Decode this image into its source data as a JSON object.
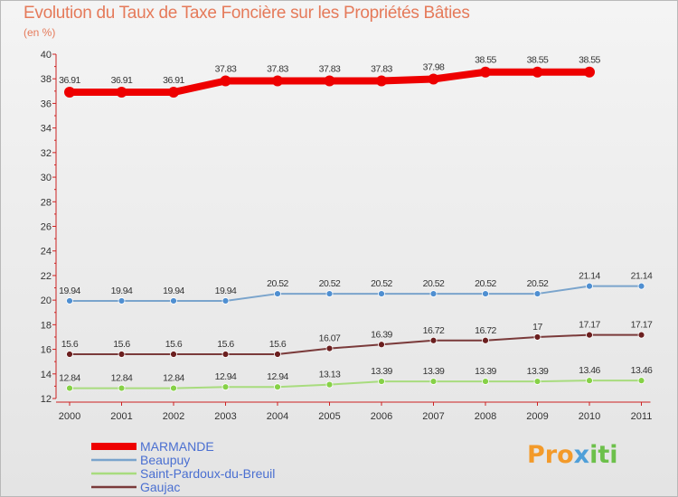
{
  "title": "Evolution du Taux de Taxe Foncière sur les Propriétés Bâties",
  "subtitle": "(en %)",
  "logo": {
    "text": "Proxiti",
    "parts": [
      "Pro",
      "x",
      "iti"
    ],
    "colors": [
      "#f39a2a",
      "#4f9fd8",
      "#6cc04a"
    ]
  },
  "chart_data": {
    "type": "line",
    "title": "Evolution du Taux de Taxe Foncière sur les Propriétés Bâties",
    "ylabel": "(en %)",
    "xlabel": "",
    "categories": [
      "2000",
      "2001",
      "2002",
      "2003",
      "2004",
      "2005",
      "2006",
      "2007",
      "2008",
      "2009",
      "2010",
      "2011"
    ],
    "ylim": [
      12,
      40
    ],
    "yticks": [
      12,
      14,
      16,
      18,
      20,
      22,
      24,
      26,
      28,
      30,
      32,
      34,
      36,
      38,
      40
    ],
    "grid": false,
    "legend_position": "bottom-left",
    "series": [
      {
        "name": "MARMANDE",
        "color": "#ee0000",
        "width": 8,
        "markerColor": "#ee0000",
        "markerRadius": 6,
        "values": [
          36.91,
          36.91,
          36.91,
          37.83,
          37.83,
          37.83,
          37.83,
          37.98,
          38.55,
          38.55,
          38.55,
          null
        ],
        "labels": [
          "36.91",
          "36.91",
          "36.91",
          "37.83",
          "37.83",
          "37.83",
          "37.83",
          "37.98",
          "38.55",
          "38.55",
          "38.55",
          ""
        ]
      },
      {
        "name": "Beaupuy",
        "color": "#7aa4cc",
        "width": 2,
        "markerColor": "#4f8fd1",
        "markerRadius": 3.5,
        "values": [
          19.94,
          19.94,
          19.94,
          19.94,
          20.52,
          20.52,
          20.52,
          20.52,
          20.52,
          20.52,
          21.14,
          21.14
        ],
        "labels": [
          "19.94",
          "19.94",
          "19.94",
          "19.94",
          "20.52",
          "20.52",
          "20.52",
          "20.52",
          "20.52",
          "20.52",
          "21.14",
          "21.14"
        ]
      },
      {
        "name": "Saint-Pardoux-du-Breuil",
        "color": "#a8dc7e",
        "width": 2,
        "markerColor": "#86d147",
        "markerRadius": 3.5,
        "values": [
          12.84,
          12.84,
          12.84,
          12.94,
          12.94,
          13.13,
          13.39,
          13.39,
          13.39,
          13.39,
          13.46,
          13.46
        ],
        "labels": [
          "12.84",
          "12.84",
          "12.84",
          "12.94",
          "12.94",
          "13.13",
          "13.39",
          "13.39",
          "13.39",
          "13.39",
          "13.46",
          "13.46"
        ]
      },
      {
        "name": "Gaujac",
        "color": "#7a3a3a",
        "width": 2,
        "markerColor": "#6b1f1f",
        "markerRadius": 3.5,
        "values": [
          15.6,
          15.6,
          15.6,
          15.6,
          15.6,
          16.07,
          16.39,
          16.72,
          16.72,
          17,
          17.17,
          17.17
        ],
        "labels": [
          "15.6",
          "15.6",
          "15.6",
          "15.6",
          "15.6",
          "16.07",
          "16.39",
          "16.72",
          "16.72",
          "17",
          "17.17",
          "17.17"
        ]
      }
    ]
  }
}
